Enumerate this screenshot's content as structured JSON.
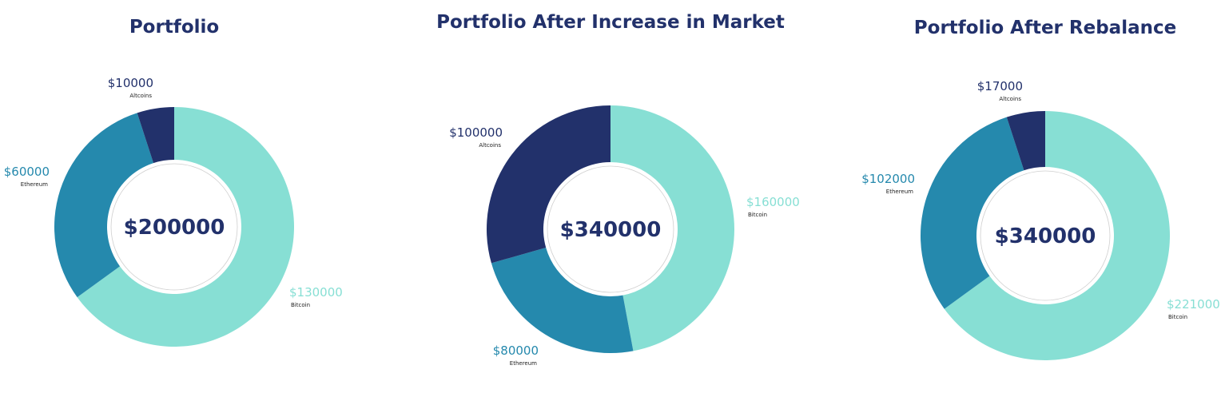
{
  "colors": {
    "navy": "#22316b",
    "teal": "#2589ad",
    "mint": "#87dfd4",
    "title": "#22316b",
    "name_text": "#222222"
  },
  "chart_data": [
    {
      "type": "pie",
      "variant": "donut",
      "title": "Portfolio",
      "center_label": "$200000",
      "slices": [
        {
          "name": "Bitcoin",
          "value": 130000,
          "label": "$130000",
          "color": "#87dfd4"
        },
        {
          "name": "Ethereum",
          "value": 60000,
          "label": "$60000",
          "color": "#2589ad"
        },
        {
          "name": "Altcoins",
          "value": 10000,
          "label": "$10000",
          "color": "#22316b"
        }
      ]
    },
    {
      "type": "pie",
      "variant": "donut",
      "title": "Portfolio After Increase in Market",
      "center_label": "$340000",
      "slices": [
        {
          "name": "Bitcoin",
          "value": 160000,
          "label": "$160000",
          "color": "#87dfd4"
        },
        {
          "name": "Ethereum",
          "value": 80000,
          "label": "$80000",
          "color": "#2589ad"
        },
        {
          "name": "Altcoins",
          "value": 100000,
          "label": "$100000",
          "color": "#22316b"
        }
      ]
    },
    {
      "type": "pie",
      "variant": "donut",
      "title": "Portfolio After Rebalance",
      "center_label": "$340000",
      "slices": [
        {
          "name": "Bitcoin",
          "value": 221000,
          "label": "$221000",
          "color": "#87dfd4"
        },
        {
          "name": "Ethereum",
          "value": 102000,
          "label": "$102000",
          "color": "#2589ad"
        },
        {
          "name": "Altcoins",
          "value": 17000,
          "label": "$17000",
          "color": "#22316b"
        }
      ]
    }
  ]
}
